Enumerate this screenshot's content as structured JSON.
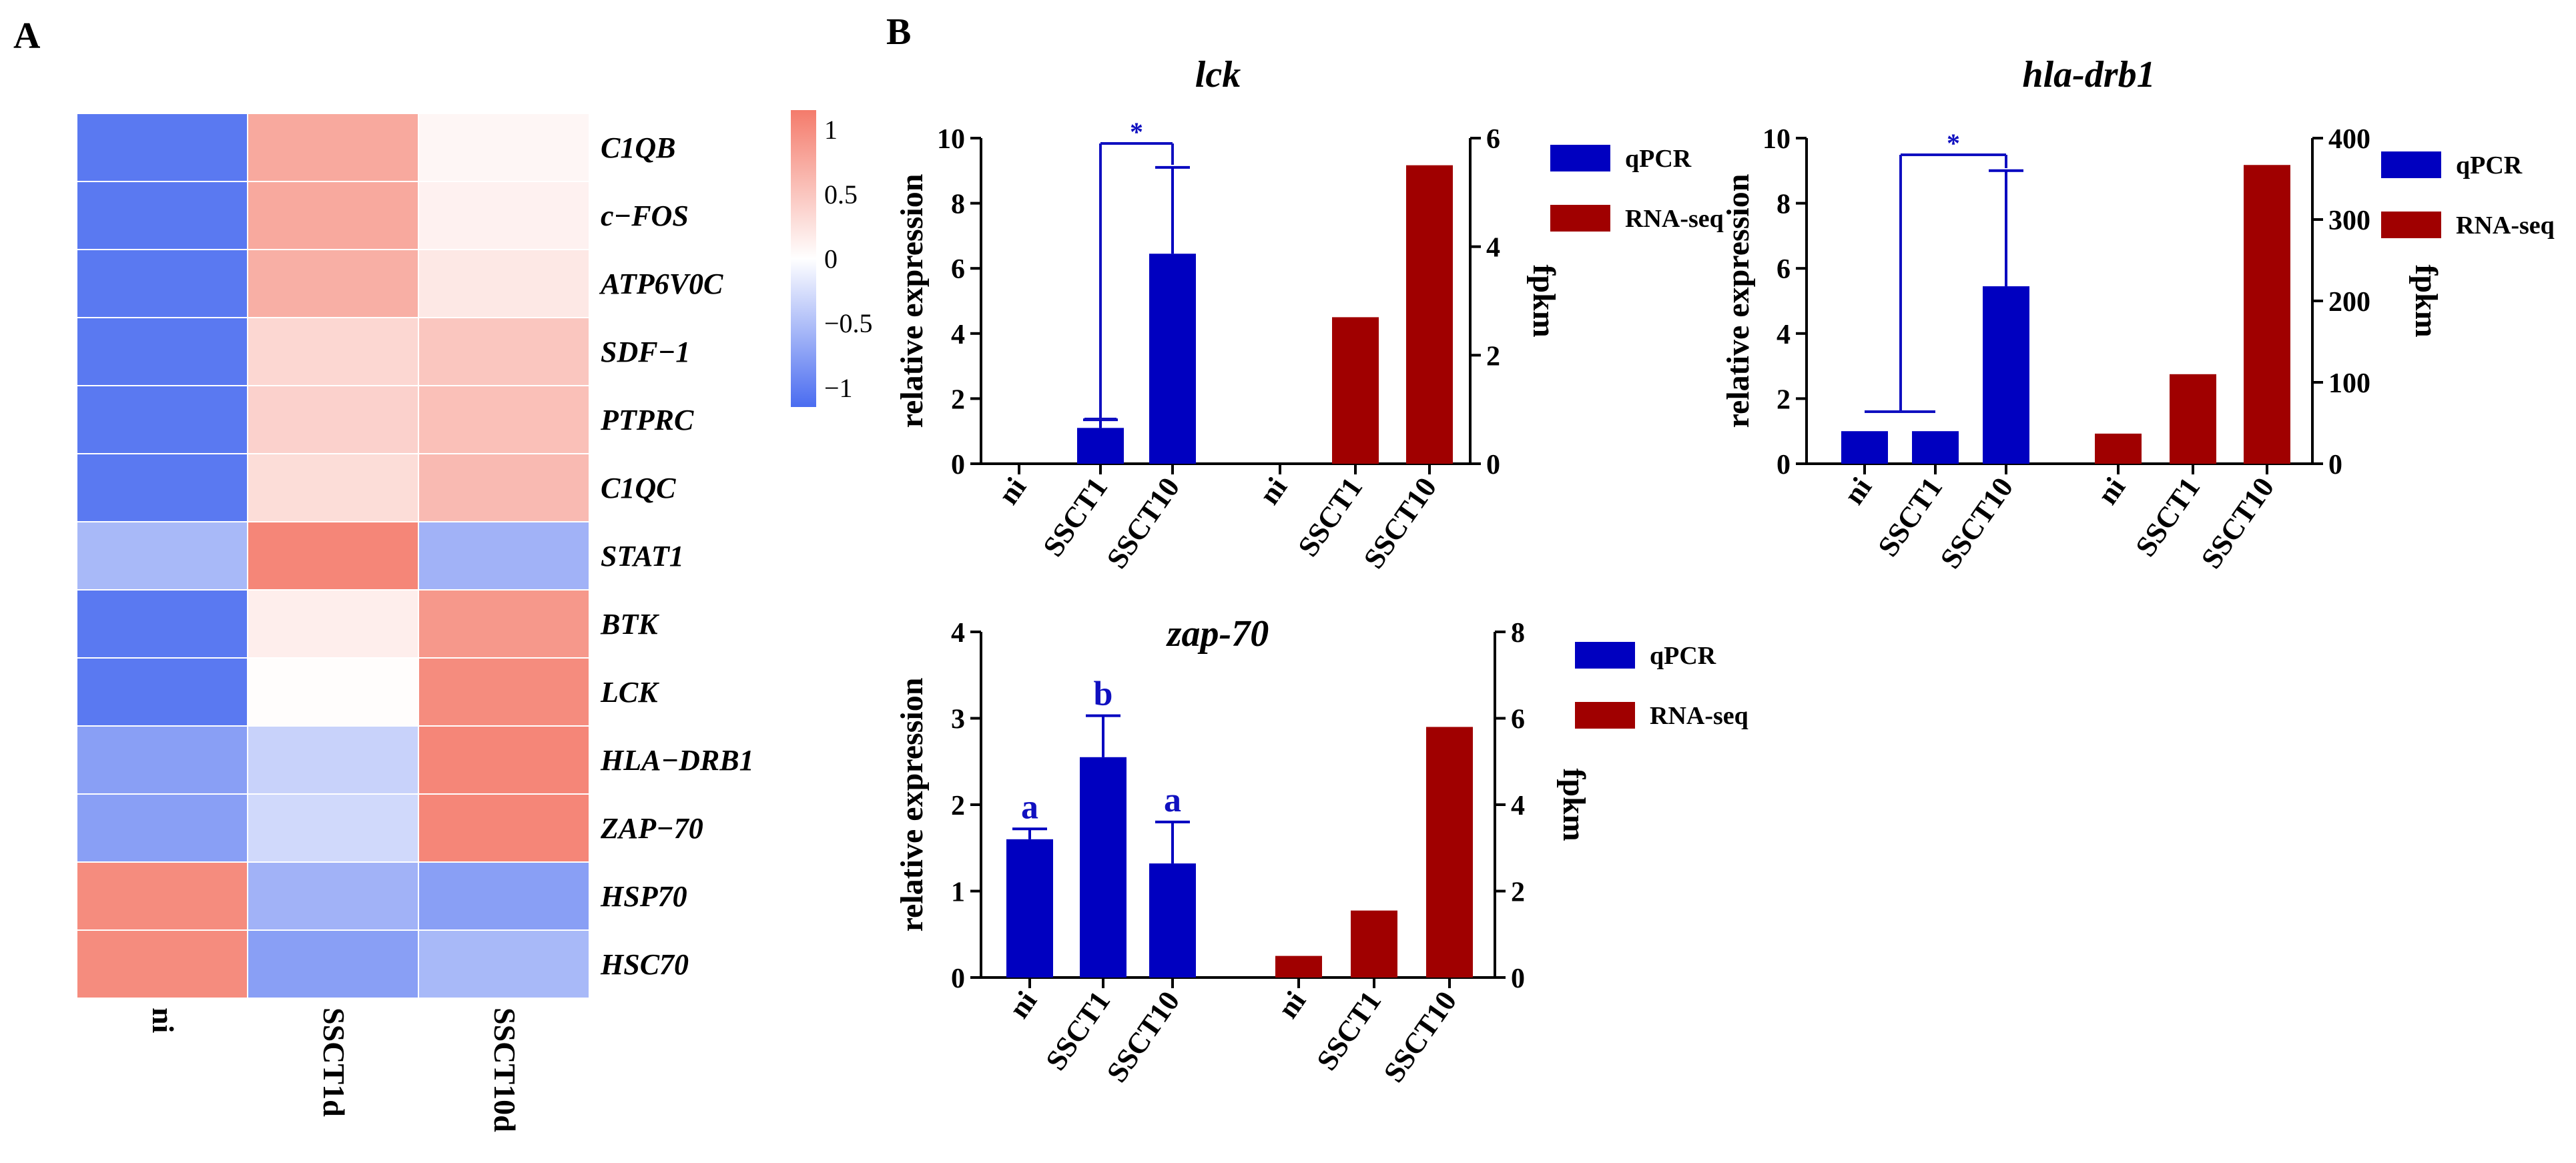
{
  "panels": {
    "a_label": "A",
    "b_label": "B"
  },
  "colors": {
    "low": "#4a6cf0",
    "mid": "#ffffff",
    "high": "#f47b6b",
    "qpcr": "#0000c0",
    "rnaseq": "#a00000",
    "sig": "#1010c0"
  },
  "chart_data": [
    {
      "type": "heatmap",
      "panel": "A",
      "rows": [
        "C1QB",
        "c−FOS",
        "ATP6V0C",
        "SDF−1",
        "PTPRC",
        "C1QC",
        "STAT1",
        "BTK",
        "LCK",
        "HLA−DRB1",
        "ZAP−70",
        "HSP70",
        "HSC70"
      ],
      "columns": [
        "ni",
        "SSCT1d",
        "SSCT10d"
      ],
      "values": [
        [
          -1.05,
          0.75,
          0.08
        ],
        [
          -1.05,
          0.75,
          0.12
        ],
        [
          -1.05,
          0.7,
          0.2
        ],
        [
          -1.05,
          0.35,
          0.5
        ],
        [
          -1.05,
          0.4,
          0.55
        ],
        [
          -1.05,
          0.3,
          0.6
        ],
        [
          -0.55,
          1.05,
          -0.6
        ],
        [
          -1.05,
          0.15,
          0.9
        ],
        [
          -1.05,
          0.02,
          1.0
        ],
        [
          -0.75,
          -0.35,
          1.05
        ],
        [
          -0.75,
          -0.3,
          1.05
        ],
        [
          1.0,
          -0.6,
          -0.75
        ],
        [
          1.0,
          -0.75,
          -0.55
        ]
      ],
      "colorbar": {
        "min": -1.15,
        "max": 1.15,
        "ticks": [
          1,
          0.5,
          0,
          -0.5,
          -1
        ],
        "tick_labels": [
          "1",
          "0.5",
          "0",
          "−0.5",
          "−1"
        ]
      }
    },
    {
      "type": "bar",
      "panel": "B",
      "title": "lck",
      "ylabel": "relative expression",
      "y2label": "fpkm",
      "ylim": [
        0,
        10
      ],
      "y2lim": [
        0,
        6
      ],
      "yticks": [
        0,
        2,
        4,
        6,
        8,
        10
      ],
      "y2ticks": [
        0,
        2,
        4,
        6
      ],
      "qpcr": {
        "name": "qPCR",
        "categories": [
          "ni",
          "SSCT1",
          "SSCT10"
        ],
        "values": [
          0,
          1.1,
          6.45
        ],
        "errors": [
          0,
          0.25,
          2.65
        ]
      },
      "rnaseq": {
        "name": "RNA-seq",
        "categories": [
          "ni",
          "SSCT1",
          "SSCT10"
        ],
        "values": [
          0,
          2.7,
          5.5
        ]
      },
      "significance": [
        {
          "from": "SSCT1",
          "to": "SSCT10",
          "label": "*"
        }
      ],
      "letters": []
    },
    {
      "type": "bar",
      "panel": "B",
      "title": "hla-drb1",
      "ylabel": "relative expression",
      "y2label": "fpkm",
      "ylim": [
        0,
        10
      ],
      "y2lim": [
        0,
        400
      ],
      "yticks": [
        0,
        2,
        4,
        6,
        8,
        10
      ],
      "y2ticks": [
        0,
        100,
        200,
        300,
        400
      ],
      "qpcr": {
        "name": "qPCR",
        "categories": [
          "ni",
          "SSCT1",
          "SSCT10"
        ],
        "values": [
          1.0,
          1.0,
          5.45
        ],
        "errors": [
          0,
          0,
          3.55
        ]
      },
      "rnaseq": {
        "name": "RNA-seq",
        "categories": [
          "ni",
          "SSCT1",
          "SSCT10"
        ],
        "values": [
          37,
          110,
          367
        ]
      },
      "significance": [
        {
          "from": "ni+SSCT1",
          "to": "SSCT10",
          "label": "*"
        }
      ],
      "letters": []
    },
    {
      "type": "bar",
      "panel": "B",
      "title": "zap-70",
      "ylabel": "relative expression",
      "y2label": "fpkm",
      "ylim": [
        0,
        4
      ],
      "y2lim": [
        0,
        8
      ],
      "yticks": [
        0,
        1,
        2,
        3,
        4
      ],
      "y2ticks": [
        0,
        2,
        4,
        6,
        8
      ],
      "qpcr": {
        "name": "qPCR",
        "categories": [
          "ni",
          "SSCT1",
          "SSCT10"
        ],
        "values": [
          1.6,
          2.55,
          1.32
        ],
        "errors": [
          0.12,
          0.48,
          0.48
        ]
      },
      "rnaseq": {
        "name": "RNA-seq",
        "categories": [
          "ni",
          "SSCT1",
          "SSCT10"
        ],
        "values": [
          0.5,
          1.55,
          5.8
        ]
      },
      "significance": [],
      "letters": [
        "a",
        "b",
        "a"
      ]
    }
  ]
}
